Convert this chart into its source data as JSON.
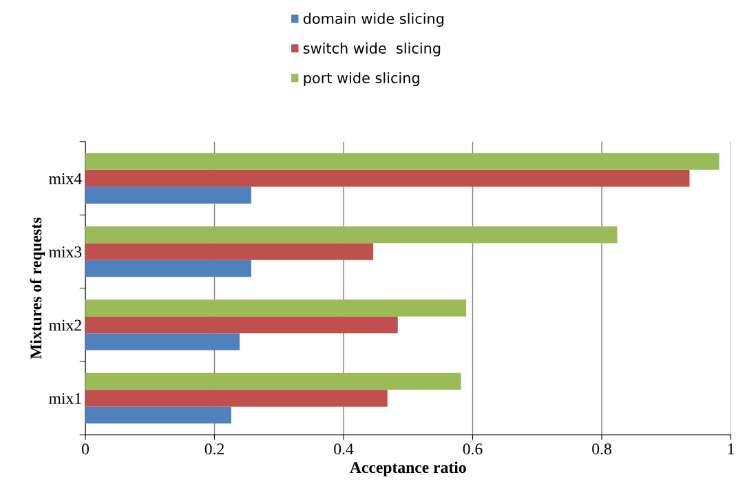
{
  "chart_data": {
    "type": "bar",
    "orientation": "horizontal",
    "xlabel": "Acceptance ratio",
    "ylabel": "Mixtures of requests",
    "categories": [
      "mix4",
      "mix3",
      "mix2",
      "mix1"
    ],
    "series": [
      {
        "name": "domain wide slicing",
        "color": "#4f81bd",
        "values": [
          0.257,
          0.257,
          0.239,
          0.226
        ]
      },
      {
        "name": "switch wide  slicing",
        "color": "#c0504d",
        "values": [
          0.936,
          0.446,
          0.484,
          0.468
        ]
      },
      {
        "name": "port wide slicing",
        "color": "#9bbb59",
        "values": [
          0.982,
          0.824,
          0.59,
          0.582
        ]
      }
    ],
    "xlim": [
      0,
      1
    ],
    "xticks": [
      0,
      0.2,
      0.4,
      0.6,
      0.8,
      1
    ],
    "grid": "x",
    "legend": "top"
  }
}
